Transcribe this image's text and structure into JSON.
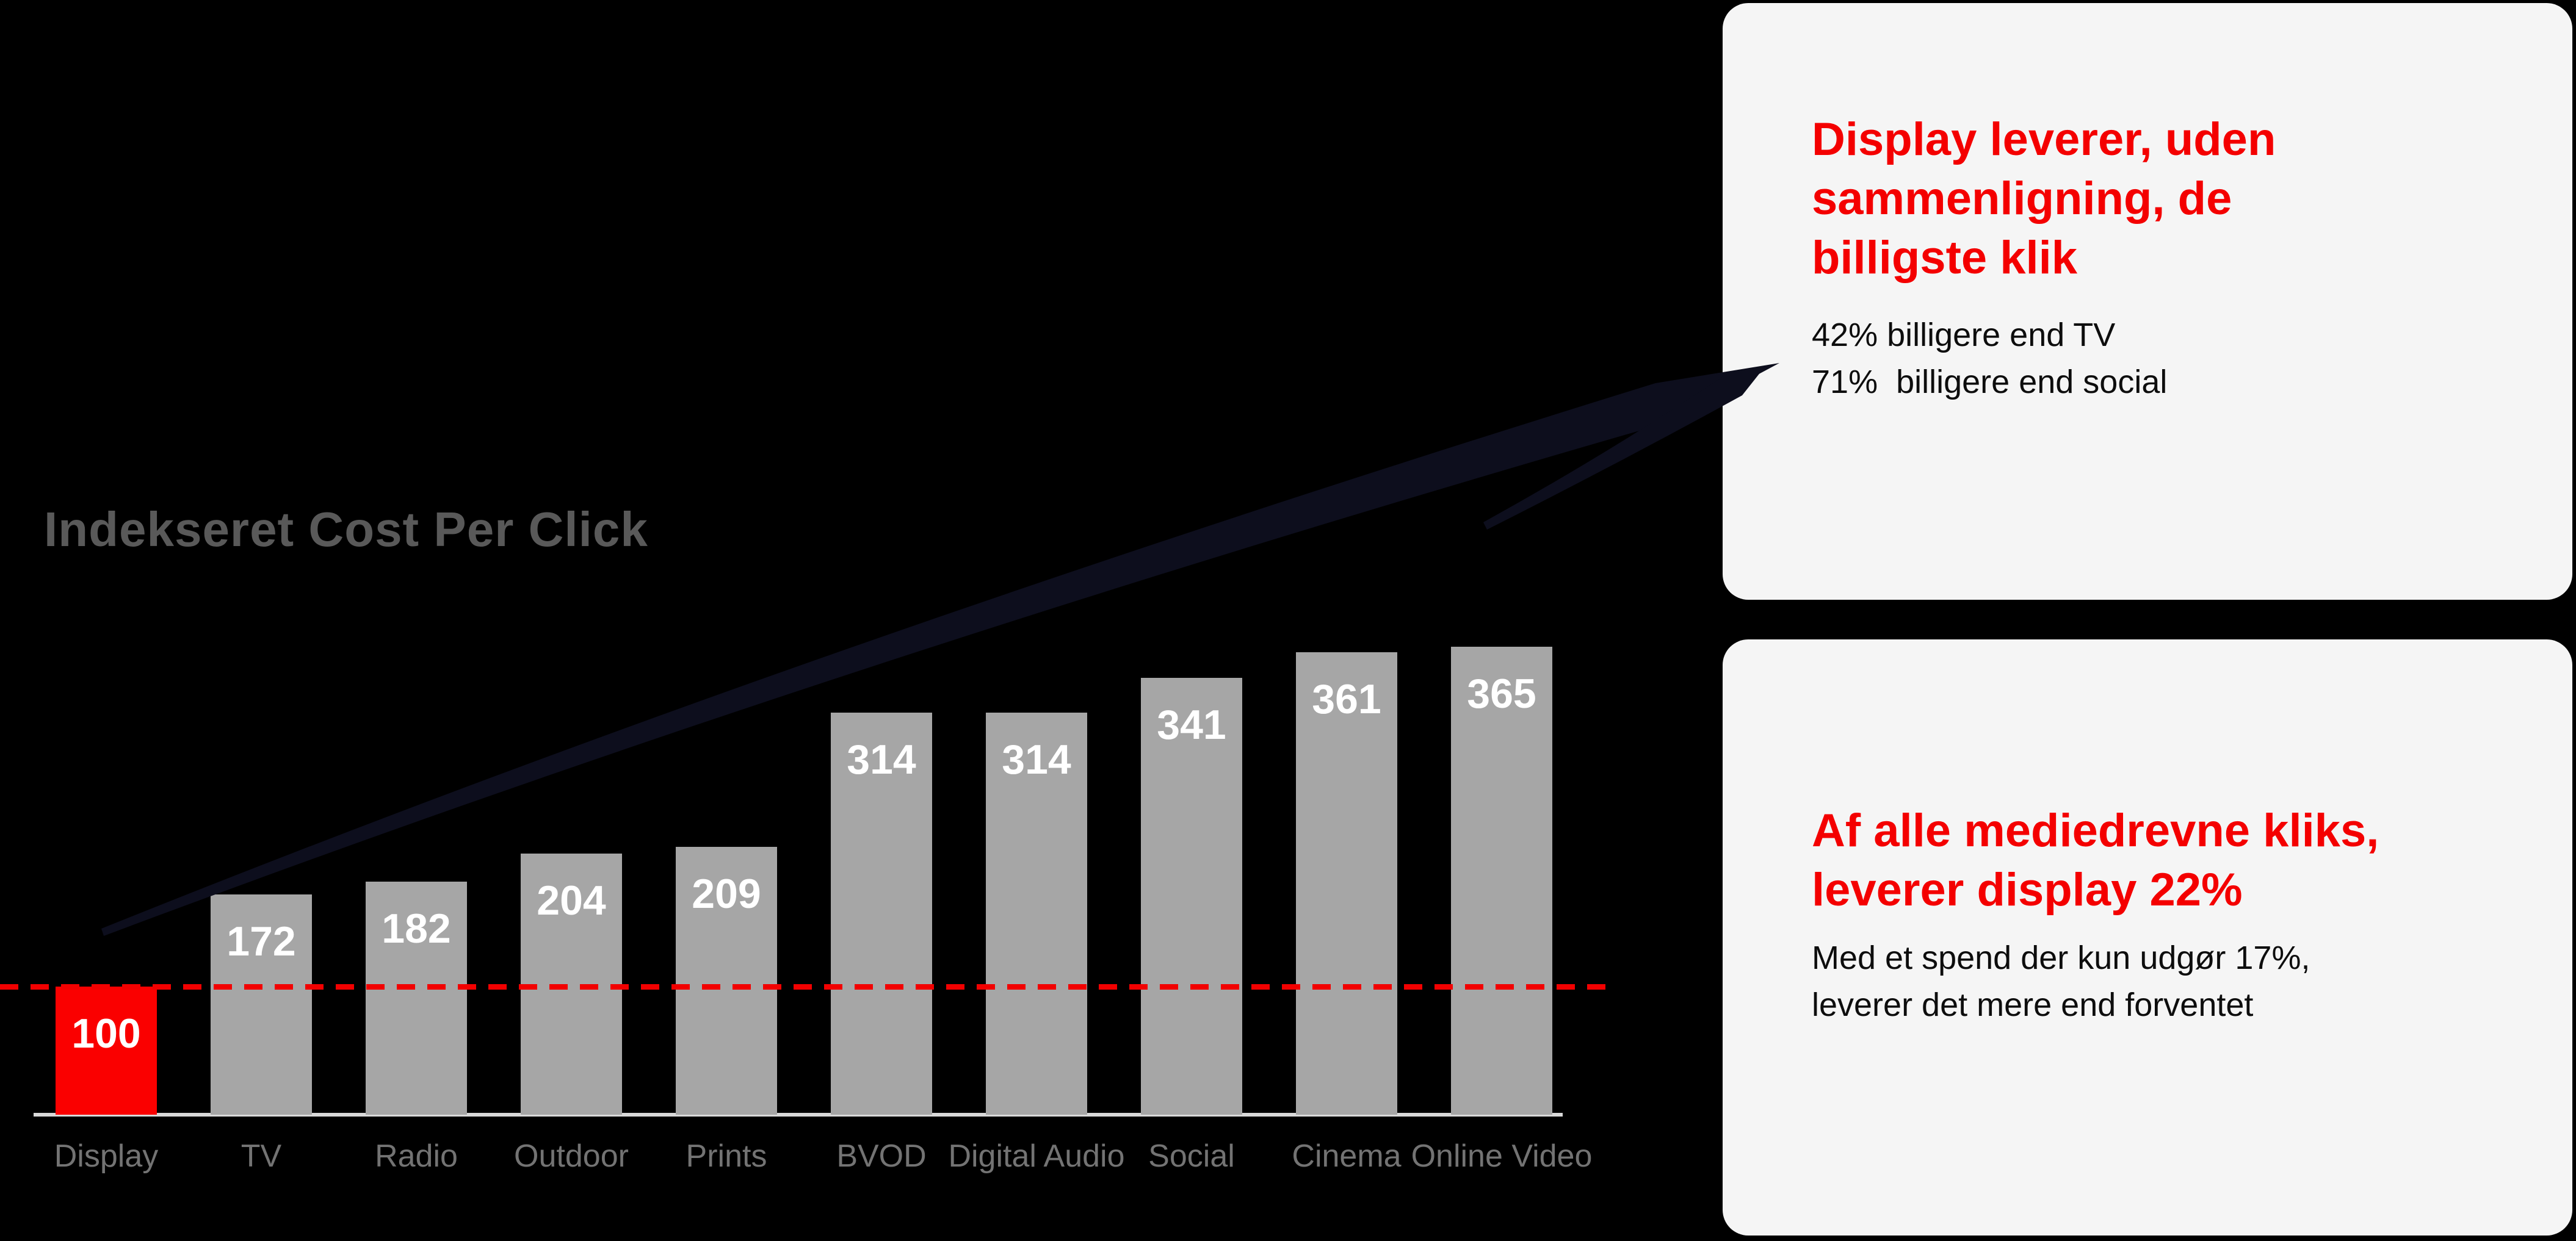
{
  "theme": {
    "page_bg": "#000000",
    "accent_red": "#f40000",
    "bar_gray": "#a6a6a6",
    "card_bg": "#f5f5f5",
    "title_gray": "#595959",
    "axis_label_gray": "#737373",
    "baseline_gray": "#d9d9d9",
    "value_label_white": "#ffffff",
    "body_text": "#0d0d0d",
    "arrow_navy": "#0d0e1d",
    "reference_line_red": "#f20000"
  },
  "chart": {
    "title": "Indekseret Cost Per Click"
  },
  "chart_data": {
    "type": "bar",
    "title": "Indekseret Cost Per Click",
    "categories": [
      "Display",
      "TV",
      "Radio",
      "Outdoor",
      "Prints",
      "BVOD",
      "Digital Audio",
      "Social",
      "Cinema",
      "Online Video"
    ],
    "values": [
      100,
      172,
      182,
      204,
      209,
      314,
      314,
      341,
      361,
      365
    ],
    "xlabel": "",
    "ylabel": "",
    "ylim": [
      0,
      400
    ],
    "grid": false,
    "legend": "none",
    "value_labels": "inside-top",
    "highlight_index": 0,
    "bar_color": "#a6a6a6",
    "highlight_color": "#fa0000",
    "value_label_color": "#ffffff",
    "axis_label_color": "#737373",
    "reference_line": {
      "value": 100,
      "style": "dashed",
      "color": "#f20000"
    }
  },
  "cards": [
    {
      "heading_lines": [
        "Display leverer, uden",
        "sammenligning, de",
        "billigste klik"
      ],
      "body_lines": [
        "42% billigere end TV",
        "71%  billigere end social"
      ]
    },
    {
      "heading_lines": [
        "Af alle mediedrevne kliks,",
        "leverer display 22%"
      ],
      "body_lines": [
        "Med et spend der kun udgør 17%,",
        "leverer det mere end forventet"
      ]
    }
  ],
  "arrow": {
    "color": "#0d0e1d"
  }
}
